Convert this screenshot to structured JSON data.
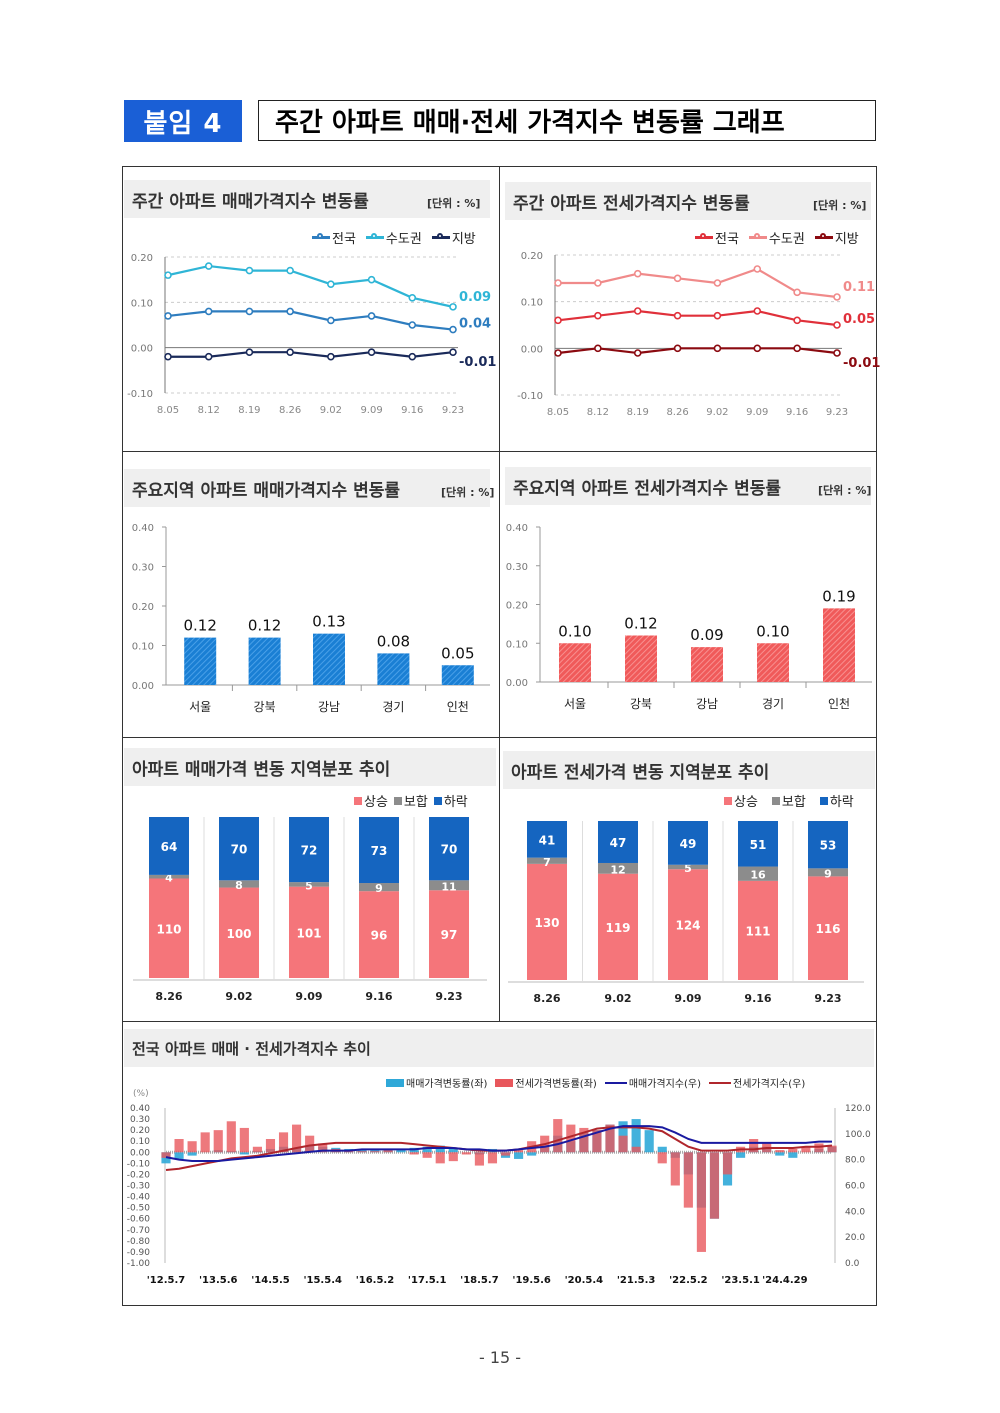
{
  "header": {
    "badge": "붙임 4",
    "title": "주간 아파트 매매·전세 가격지수 변동률 그래프"
  },
  "unit_label": "[단위 : %]",
  "page_number": "- 15 -",
  "colors": {
    "blue": "#1a5fd6",
    "rise": "#f5757a",
    "flat": "#8c8c8c",
    "fall": "#1565c0"
  },
  "chart_data": [
    {
      "type": "line",
      "title": "주간 아파트 매매가격지수 변동률",
      "categories": [
        "8.05",
        "8.12",
        "8.19",
        "8.26",
        "9.02",
        "9.09",
        "9.16",
        "9.23"
      ],
      "ylim": [
        -0.1,
        0.2
      ],
      "yticks": [
        "0.20",
        "0.10",
        "0.00",
        "-0.10"
      ],
      "series": [
        {
          "name": "전국",
          "color": "#2e7dbf",
          "values": [
            0.07,
            0.08,
            0.08,
            0.08,
            0.06,
            0.07,
            0.05,
            0.04
          ],
          "end_label": "0.04"
        },
        {
          "name": "수도권",
          "color": "#2fb5d6",
          "values": [
            0.16,
            0.18,
            0.17,
            0.17,
            0.14,
            0.15,
            0.11,
            0.09
          ],
          "end_label": "0.09"
        },
        {
          "name": "지방",
          "color": "#1a2a5a",
          "values": [
            -0.02,
            -0.02,
            -0.01,
            -0.01,
            -0.02,
            -0.01,
            -0.02,
            -0.01
          ],
          "end_label": "-0.01"
        }
      ]
    },
    {
      "type": "line",
      "title": "주간 아파트 전세가격지수 변동률",
      "categories": [
        "8.05",
        "8.12",
        "8.19",
        "8.26",
        "9.02",
        "9.09",
        "9.16",
        "9.23"
      ],
      "ylim": [
        -0.1,
        0.2
      ],
      "yticks": [
        "0.20",
        "0.10",
        "0.00",
        "-0.10"
      ],
      "series": [
        {
          "name": "전국",
          "color": "#e0303a",
          "values": [
            0.06,
            0.07,
            0.08,
            0.07,
            0.07,
            0.08,
            0.06,
            0.05
          ],
          "end_label": "0.05"
        },
        {
          "name": "수도권",
          "color": "#f08a8a",
          "values": [
            0.14,
            0.14,
            0.16,
            0.15,
            0.14,
            0.17,
            0.12,
            0.11
          ],
          "end_label": "0.11"
        },
        {
          "name": "지방",
          "color": "#8b0a10",
          "values": [
            -0.01,
            0.0,
            -0.01,
            0.0,
            0.0,
            0.0,
            0.0,
            -0.01
          ],
          "end_label": "-0.01"
        }
      ]
    },
    {
      "type": "bar",
      "title": "주요지역 아파트 매매가격지수 변동률",
      "categories": [
        "서울",
        "강북",
        "강남",
        "경기",
        "인천"
      ],
      "values": [
        0.12,
        0.12,
        0.13,
        0.08,
        0.05
      ],
      "labels": [
        "0.12",
        "0.12",
        "0.13",
        "0.08",
        "0.05"
      ],
      "ylim": [
        0,
        0.4
      ],
      "yticks": [
        "0.40",
        "0.30",
        "0.20",
        "0.10",
        "0.00"
      ],
      "color": "#1a7fd4"
    },
    {
      "type": "bar",
      "title": "주요지역 아파트 전세가격지수 변동률",
      "categories": [
        "서울",
        "강북",
        "강남",
        "경기",
        "인천"
      ],
      "values": [
        0.1,
        0.12,
        0.09,
        0.1,
        0.19
      ],
      "labels": [
        "0.10",
        "0.12",
        "0.09",
        "0.10",
        "0.19"
      ],
      "ylim": [
        0,
        0.4
      ],
      "yticks": [
        "0.40",
        "0.30",
        "0.20",
        "0.10",
        "0.00"
      ],
      "color": "#f05a5a"
    },
    {
      "type": "bar",
      "stacked": true,
      "title": "아파트 매매가격 변동 지역분포 추이",
      "categories": [
        "8.26",
        "9.02",
        "9.09",
        "9.16",
        "9.23"
      ],
      "series": [
        {
          "name": "상승",
          "values": [
            110,
            100,
            101,
            96,
            97
          ]
        },
        {
          "name": "보합",
          "values": [
            4,
            8,
            5,
            9,
            11
          ]
        },
        {
          "name": "하락",
          "values": [
            64,
            70,
            72,
            73,
            70
          ]
        }
      ]
    },
    {
      "type": "bar",
      "stacked": true,
      "title": "아파트 전세가격 변동 지역분포 추이",
      "categories": [
        "8.26",
        "9.02",
        "9.09",
        "9.16",
        "9.23"
      ],
      "series": [
        {
          "name": "상승",
          "values": [
            130,
            119,
            124,
            111,
            116
          ]
        },
        {
          "name": "보합",
          "values": [
            7,
            12,
            5,
            16,
            9
          ]
        },
        {
          "name": "하락",
          "values": [
            41,
            47,
            49,
            51,
            53
          ]
        }
      ]
    },
    {
      "type": "line",
      "title": "전국 아파트 매매 · 전세가격지수 추이",
      "yunit": "(%)",
      "ylim_left": [
        -1.0,
        0.4
      ],
      "ylim_right": [
        0,
        120
      ],
      "yticks_left": [
        "0.40",
        "0.30",
        "0.20",
        "0.10",
        "0.00",
        "-0.10",
        "-0.20",
        "-0.30",
        "-0.40",
        "-0.50",
        "-0.60",
        "-0.70",
        "-0.80",
        "-0.90",
        "-1.00"
      ],
      "yticks_right": [
        "120.0",
        "100.0",
        "80.0",
        "60.0",
        "40.0",
        "20.0",
        "0.0"
      ],
      "xticks": [
        "'12.5.7",
        "'13.5.6",
        "'14.5.5",
        "'15.5.4",
        "'16.5.2",
        "'17.5.1",
        "'18.5.7",
        "'19.5.6",
        "'20.5.4",
        "'21.5.3",
        "'22.5.2",
        "'23.5.1",
        "'24.4.29"
      ],
      "series": [
        {
          "name": "매매가격변동률(좌)",
          "kind": "bar",
          "color": "#2fa8d8",
          "values": [
            -0.1,
            -0.06,
            -0.03,
            0.0,
            0.02,
            0.01,
            -0.02,
            0.01,
            0.03,
            0.05,
            0.04,
            0.06,
            0.05,
            0.04,
            0.03,
            0.02,
            0.02,
            0.03,
            0.03,
            0.04,
            0.05,
            0.06,
            0.04,
            0.0,
            -0.02,
            0.03,
            -0.05,
            -0.06,
            -0.03,
            0.05,
            0.15,
            0.1,
            0.18,
            0.2,
            0.25,
            0.28,
            0.3,
            0.2,
            0.05,
            -0.05,
            -0.2,
            -0.5,
            -0.6,
            -0.3,
            -0.05,
            0.05,
            0.05,
            -0.03,
            -0.05,
            0.0,
            0.03,
            0.05
          ]
        },
        {
          "name": "전세가격변동률(좌)",
          "kind": "bar",
          "color": "#e8575c",
          "values": [
            -0.05,
            0.12,
            0.1,
            0.18,
            0.2,
            0.28,
            0.22,
            0.05,
            0.12,
            0.18,
            0.25,
            0.15,
            0.08,
            0.03,
            0.02,
            0.01,
            0.01,
            0.02,
            0.0,
            -0.02,
            -0.05,
            -0.1,
            -0.08,
            -0.02,
            -0.12,
            -0.1,
            -0.03,
            0.02,
            0.1,
            0.15,
            0.3,
            0.25,
            0.22,
            0.2,
            0.25,
            0.15,
            0.05,
            0.0,
            -0.1,
            -0.3,
            -0.5,
            -0.9,
            -0.6,
            -0.2,
            0.05,
            0.12,
            0.08,
            0.02,
            0.03,
            0.05,
            0.08,
            0.06
          ]
        },
        {
          "name": "매매가격지수(우)",
          "kind": "line",
          "color": "#1a1aa0",
          "values": [
            82,
            80,
            79,
            79,
            79,
            80,
            81,
            82,
            83,
            84,
            85,
            86,
            87,
            87,
            87,
            88,
            88,
            88,
            88,
            88,
            89,
            89,
            89,
            88,
            88,
            87,
            87,
            88,
            89,
            90,
            92,
            95,
            98,
            101,
            104,
            106,
            106,
            106,
            105,
            101,
            96,
            93,
            93,
            93,
            93,
            93,
            93,
            93,
            93,
            93,
            94,
            94
          ]
        },
        {
          "name": "전세가격지수(우)",
          "kind": "line",
          "color": "#b0262c",
          "values": [
            72,
            73,
            75,
            77,
            79,
            81,
            82,
            83,
            85,
            87,
            89,
            91,
            92,
            93,
            93,
            93,
            93,
            93,
            93,
            92,
            91,
            90,
            89,
            88,
            87,
            87,
            87,
            88,
            90,
            92,
            95,
            98,
            101,
            104,
            105,
            105,
            105,
            104,
            102,
            96,
            90,
            87,
            87,
            87,
            88,
            88,
            89,
            89,
            89,
            90,
            90,
            91
          ]
        }
      ]
    }
  ]
}
